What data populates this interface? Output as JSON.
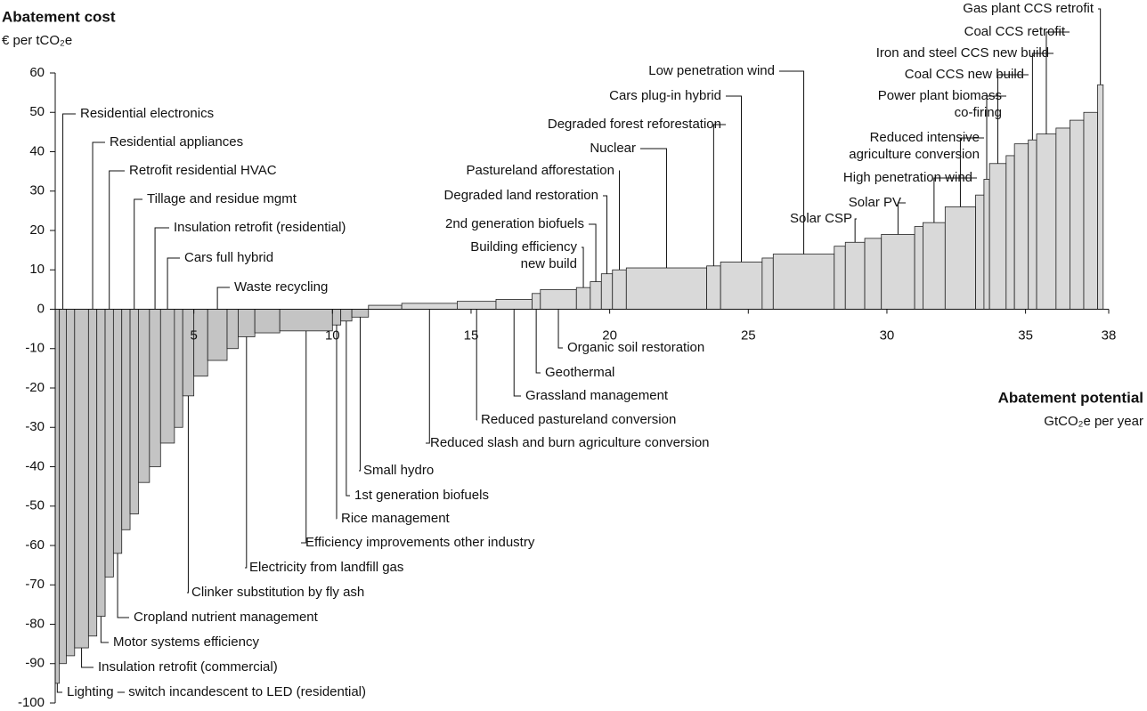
{
  "chart_data": {
    "type": "cost_curve",
    "title": "Abatement cost",
    "y_label": "€ per tCO₂e",
    "x_label": "Abatement potential",
    "x_unit": "GtCO₂e per year",
    "xlim": [
      0,
      38
    ],
    "ylim": [
      -100,
      60
    ],
    "xticks": [
      5,
      10,
      15,
      20,
      25,
      30,
      35,
      38
    ],
    "yticks": [
      -100,
      -90,
      -80,
      -70,
      -60,
      -50,
      -40,
      -30,
      -20,
      -10,
      0,
      10,
      20,
      30,
      40,
      50,
      60
    ],
    "color": "#d9d9d9",
    "categories": [
      "Lighting – switch incandescent to LED (residential)",
      "Residential electronics",
      null,
      "Insulation retrofit (commercial)",
      "Residential appliances",
      "Motor systems efficiency",
      "Retrofit residential HVAC",
      "Cropland nutrient management",
      null,
      "Tillage and residue mgmt",
      null,
      "Insulation retrofit (residential)",
      "Cars full hybrid",
      null,
      "Clinker substitution by fly ash",
      null,
      "Waste recycling",
      null,
      "Electricity from landfill gas",
      null,
      "Efficiency improvements other industry",
      "Rice management",
      "1st generation biofuels",
      "Small hydro",
      null,
      "Reduced slash and burn agriculture conversion",
      "Reduced pastureland conversion",
      "Grassland management",
      "Geothermal",
      "Organic soil restoration",
      "Building efficiency\nnew build",
      "2nd generation biofuels",
      "Degraded land restoration",
      "Pastureland afforestation",
      "Nuclear",
      "Degraded forest reforestation",
      "Cars plug-in hybrid",
      null,
      "Low penetration wind",
      null,
      "Solar CSP",
      null,
      "Solar PV",
      null,
      "High penetration wind",
      "Reduced intensive\nagriculture conversion",
      null,
      "Power plant biomass\nco-firing",
      "Coal CCS new build",
      null,
      null,
      "Iron and steel CCS new build",
      "Coal CCS retrofit",
      null,
      null,
      null,
      "Gas plant CCS retrofit"
    ],
    "widths": [
      0.15,
      0.25,
      0.3,
      0.5,
      0.3,
      0.3,
      0.3,
      0.3,
      0.3,
      0.3,
      0.4,
      0.4,
      0.5,
      0.3,
      0.4,
      0.5,
      0.7,
      0.4,
      0.6,
      0.9,
      1.9,
      0.3,
      0.4,
      0.6,
      1.2,
      2.0,
      1.4,
      1.3,
      0.3,
      1.3,
      0.5,
      0.4,
      0.4,
      0.5,
      2.9,
      0.5,
      1.5,
      0.4,
      2.2,
      0.4,
      0.7,
      0.6,
      1.2,
      0.3,
      0.8,
      1.1,
      0.3,
      0.2,
      0.6,
      0.3,
      0.5,
      0.3,
      0.7,
      0.5,
      0.5,
      0.5,
      0.2
    ],
    "values": [
      -95,
      -90,
      -88,
      -86,
      -83,
      -78,
      -68,
      -62,
      -56,
      -52,
      -44,
      -40,
      -34,
      -30,
      -22,
      -17,
      -13,
      -10,
      -7,
      -6,
      -5.5,
      -4,
      -3,
      -2,
      1,
      1.5,
      2,
      2.5,
      4,
      5,
      5.5,
      7,
      9,
      10,
      10.5,
      11,
      12,
      13,
      14,
      16,
      17,
      18,
      19,
      21,
      22,
      26,
      29,
      33,
      37,
      39,
      42,
      43,
      44.5,
      46,
      48,
      50,
      57
    ]
  }
}
